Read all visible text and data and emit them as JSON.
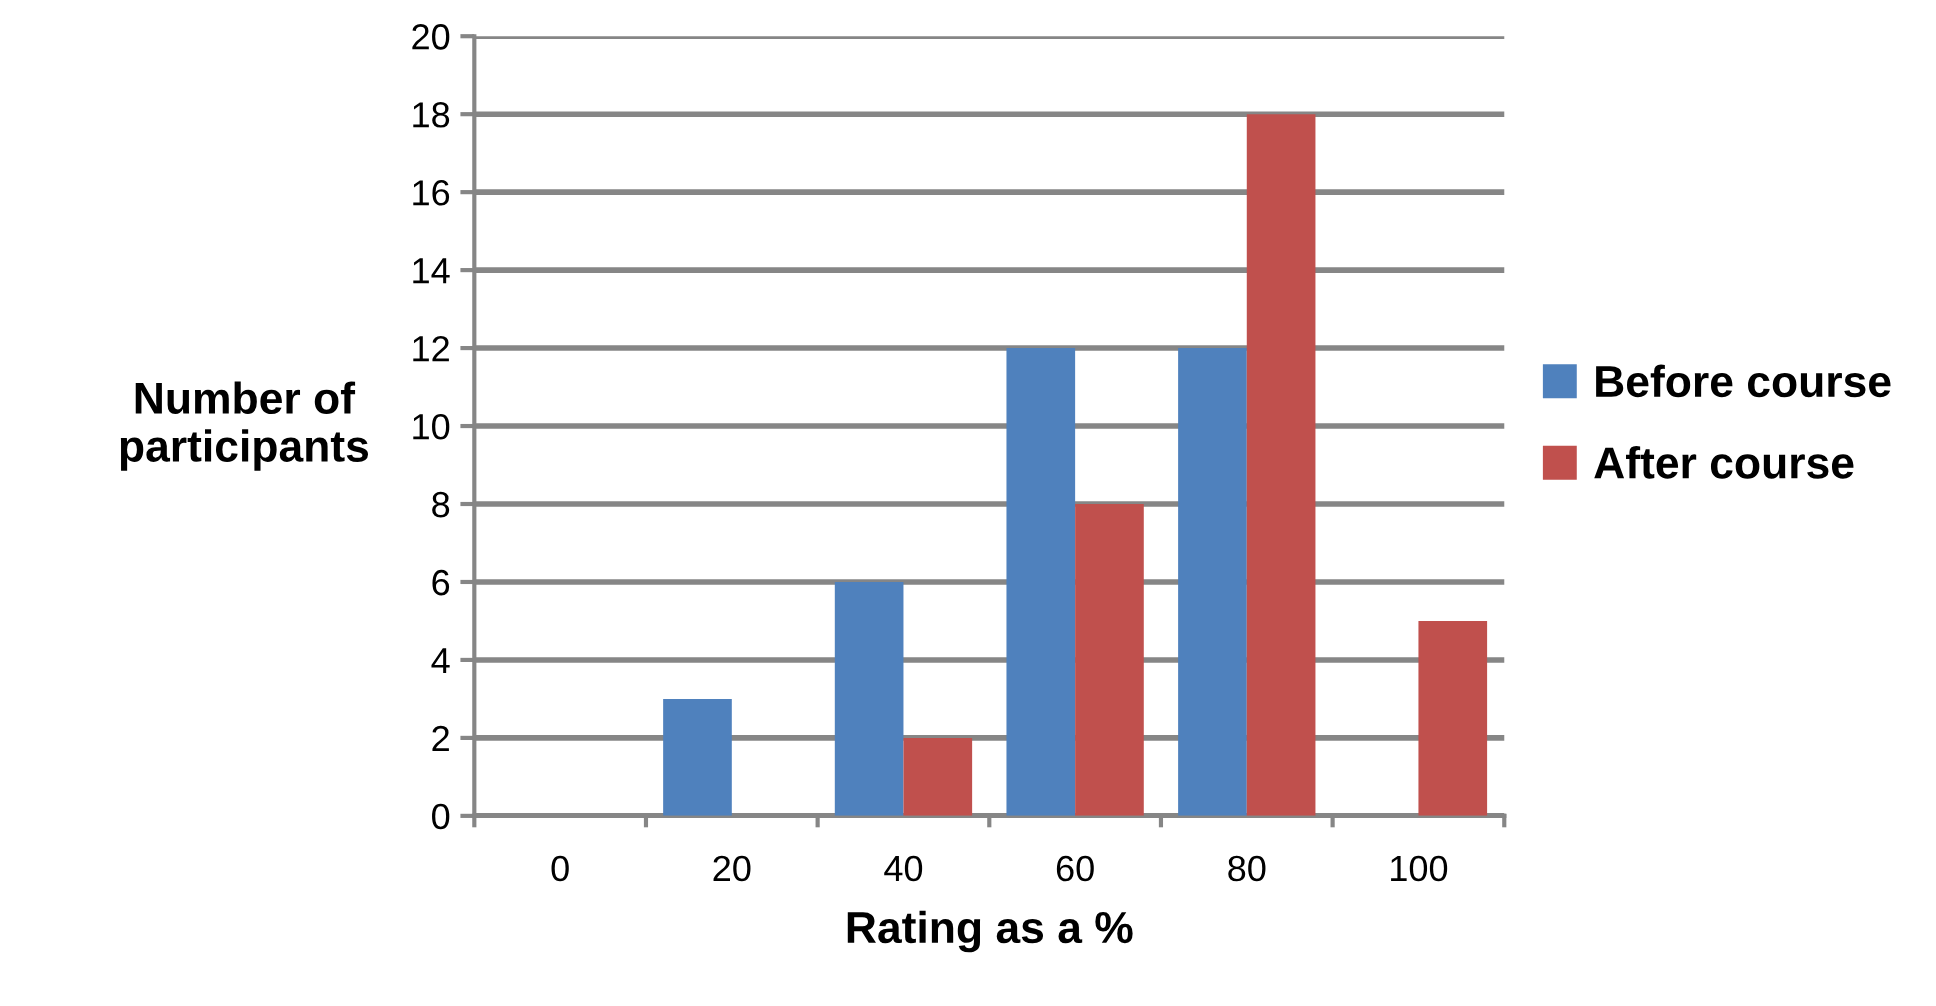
{
  "chart_data": {
    "type": "bar",
    "xlabel": "Rating as a %",
    "ylabel": "Number of\nparticipants",
    "categories": [
      "0",
      "20",
      "40",
      "60",
      "80",
      "100"
    ],
    "series": [
      {
        "name": "Before course",
        "color": "#4f81bd",
        "values": [
          0,
          3,
          6,
          12,
          12,
          0
        ]
      },
      {
        "name": "After course",
        "color": "#c0504d",
        "values": [
          0,
          0,
          2,
          8,
          18,
          5
        ]
      }
    ],
    "ylim": [
      0,
      20
    ],
    "yticks": [
      0,
      2,
      4,
      6,
      8,
      10,
      12,
      14,
      16,
      18,
      20
    ],
    "grid": "y",
    "legend": "right"
  }
}
